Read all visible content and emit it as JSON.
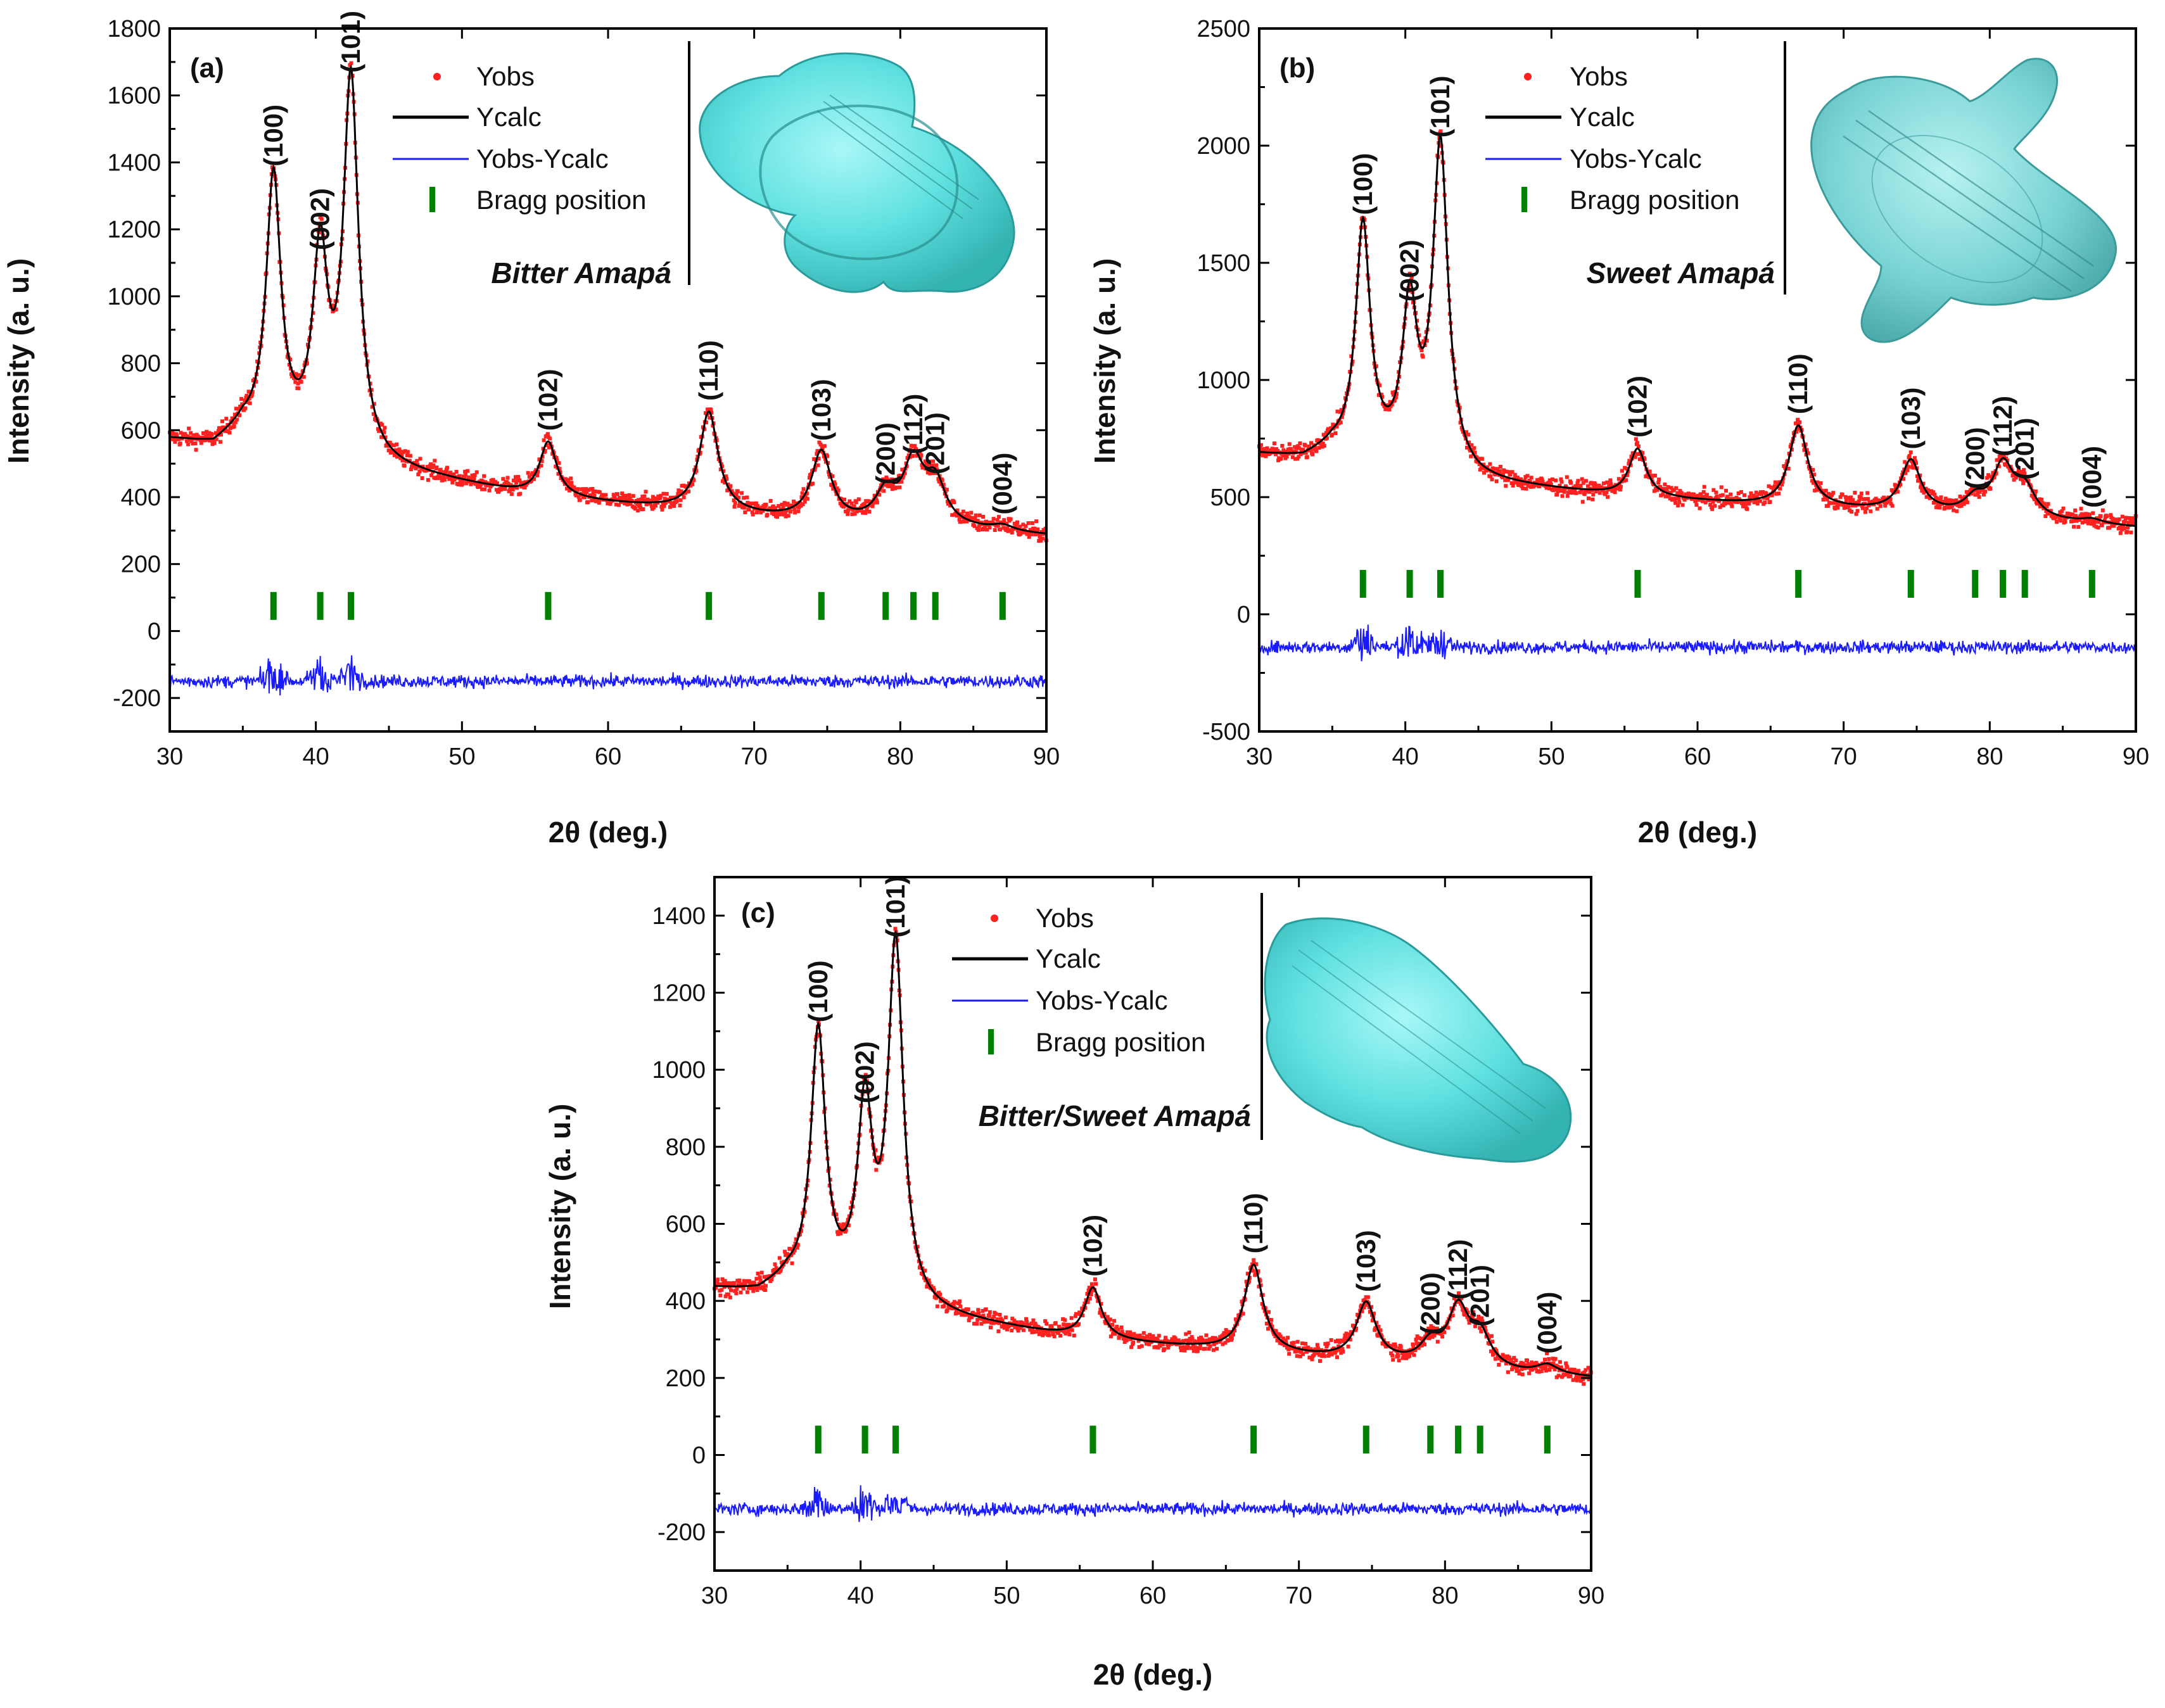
{
  "chart_data": [
    {
      "type": "line",
      "panel_label": "(a)",
      "sample": "Bitter Amapá",
      "xlabel": "2θ (deg.)",
      "ylabel": "Intensity (a. u.)",
      "xlim": [
        30,
        90
      ],
      "ylim": [
        -300,
        1800
      ],
      "xticks": [
        "30",
        "40",
        "50",
        "60",
        "70",
        "80",
        "90"
      ],
      "yticks": [
        "-200",
        "0",
        "200",
        "400",
        "600",
        "800",
        "1000",
        "1200",
        "1400",
        "1600",
        "1800"
      ],
      "legend": [
        "Yobs",
        "Ycalc",
        "Yobs-Ycalc",
        "Bragg position"
      ],
      "background": [
        [
          30,
          570
        ],
        [
          33,
          550
        ],
        [
          35,
          600
        ],
        [
          45,
          480
        ],
        [
          55,
          400
        ],
        [
          65,
          360
        ],
        [
          75,
          320
        ],
        [
          85,
          300
        ],
        [
          90,
          285
        ]
      ],
      "peaks": [
        {
          "hkl": "(100)",
          "x": 37.1,
          "y": 1350
        },
        {
          "hkl": "(002)",
          "x": 40.3,
          "y": 1100
        },
        {
          "hkl": "(101)",
          "x": 42.4,
          "y": 1630
        },
        {
          "hkl": "(102)",
          "x": 55.9,
          "y": 560
        },
        {
          "hkl": "(110)",
          "x": 66.9,
          "y": 650
        },
        {
          "hkl": "(103)",
          "x": 74.6,
          "y": 530
        },
        {
          "hkl": "(200)",
          "x": 79.0,
          "y": 400
        },
        {
          "hkl": "(112)",
          "x": 80.9,
          "y": 490
        },
        {
          "hkl": "(201)",
          "x": 82.4,
          "y": 430
        },
        {
          "hkl": "(004)",
          "x": 87.0,
          "y": 310
        }
      ],
      "bragg_level": 75,
      "diff_baseline": -150
    },
    {
      "type": "line",
      "panel_label": "(b)",
      "sample": "Sweet Amapá",
      "xlabel": "2θ (deg.)",
      "ylabel": "Intensity (a. u.)",
      "xlim": [
        30,
        90
      ],
      "ylim": [
        -500,
        2500
      ],
      "xticks": [
        "30",
        "40",
        "50",
        "60",
        "70",
        "80",
        "90"
      ],
      "yticks": [
        "-500",
        "0",
        "500",
        "1000",
        "1500",
        "2000",
        "2500"
      ],
      "legend": [
        "Yobs",
        "Ycalc",
        "Yobs-Ycalc",
        "Bragg position"
      ],
      "background": [
        [
          30,
          680
        ],
        [
          33,
          660
        ],
        [
          35,
          700
        ],
        [
          45,
          560
        ],
        [
          55,
          500
        ],
        [
          65,
          460
        ],
        [
          75,
          430
        ],
        [
          85,
          390
        ],
        [
          90,
          370
        ]
      ],
      "peaks": [
        {
          "hkl": "(100)",
          "x": 37.1,
          "y": 1650
        },
        {
          "hkl": "(002)",
          "x": 40.3,
          "y": 1280
        },
        {
          "hkl": "(101)",
          "x": 42.4,
          "y": 1980
        },
        {
          "hkl": "(102)",
          "x": 55.9,
          "y": 700
        },
        {
          "hkl": "(110)",
          "x": 66.9,
          "y": 800
        },
        {
          "hkl": "(103)",
          "x": 74.6,
          "y": 650
        },
        {
          "hkl": "(200)",
          "x": 79.0,
          "y": 480
        },
        {
          "hkl": "(112)",
          "x": 80.9,
          "y": 620
        },
        {
          "hkl": "(201)",
          "x": 82.4,
          "y": 520
        },
        {
          "hkl": "(004)",
          "x": 87.0,
          "y": 400
        }
      ],
      "bragg_level": 130,
      "diff_baseline": -140
    },
    {
      "type": "line",
      "panel_label": "(c)",
      "sample": "Bitter/Sweet Amapá",
      "xlabel": "2θ (deg.)",
      "ylabel": "Intensity (a. u.)",
      "xlim": [
        30,
        90
      ],
      "ylim": [
        -300,
        1500
      ],
      "xticks": [
        "30",
        "40",
        "50",
        "60",
        "70",
        "80",
        "90"
      ],
      "yticks": [
        "-200",
        "0",
        "200",
        "400",
        "600",
        "800",
        "1000",
        "1200",
        "1400"
      ],
      "legend": [
        "Yobs",
        "Ycalc",
        "Yobs-Ycalc",
        "Bragg position"
      ],
      "background": [
        [
          30,
          430
        ],
        [
          33,
          420
        ],
        [
          35,
          450
        ],
        [
          45,
          360
        ],
        [
          55,
          300
        ],
        [
          65,
          270
        ],
        [
          75,
          240
        ],
        [
          85,
          210
        ],
        [
          90,
          200
        ]
      ],
      "peaks": [
        {
          "hkl": "(100)",
          "x": 37.1,
          "y": 1090
        },
        {
          "hkl": "(002)",
          "x": 40.3,
          "y": 880
        },
        {
          "hkl": "(101)",
          "x": 42.4,
          "y": 1310
        },
        {
          "hkl": "(102)",
          "x": 55.9,
          "y": 430
        },
        {
          "hkl": "(110)",
          "x": 66.9,
          "y": 490
        },
        {
          "hkl": "(103)",
          "x": 74.6,
          "y": 390
        },
        {
          "hkl": "(200)",
          "x": 79.0,
          "y": 280
        },
        {
          "hkl": "(112)",
          "x": 80.9,
          "y": 370
        },
        {
          "hkl": "(201)",
          "x": 82.4,
          "y": 300
        },
        {
          "hkl": "(004)",
          "x": 87.0,
          "y": 230
        }
      ],
      "bragg_level": 40,
      "diff_baseline": -140
    }
  ],
  "colors": {
    "yobs": "#ff2020",
    "ycalc": "#000000",
    "diff": "#1a1aff",
    "bragg": "#008000",
    "shape_fill": "#59e3e3",
    "shape_edge": "#2a9a9a"
  }
}
